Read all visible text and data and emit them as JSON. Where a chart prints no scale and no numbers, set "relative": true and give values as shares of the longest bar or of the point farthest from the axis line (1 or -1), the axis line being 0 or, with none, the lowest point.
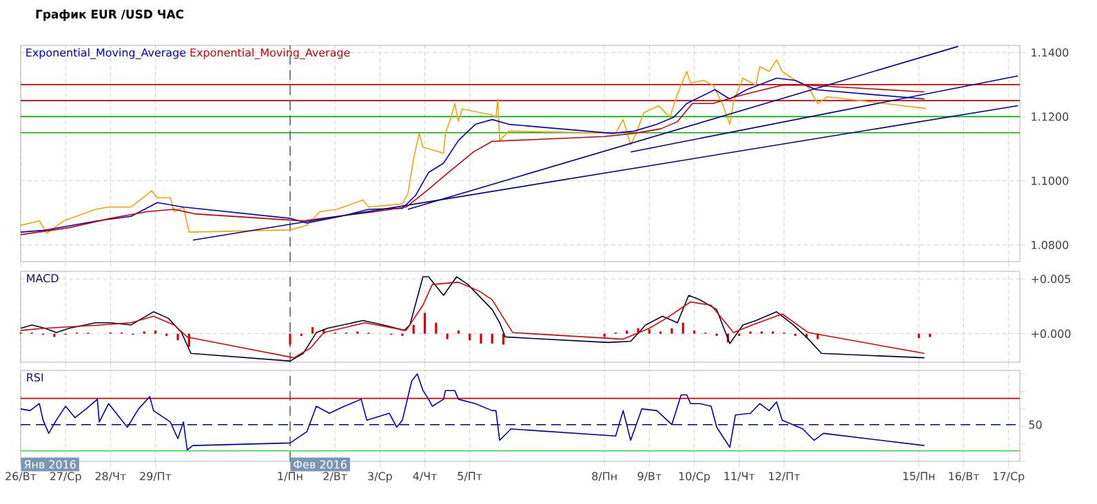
{
  "chart_data": [
    {
      "type": "line",
      "title": "График EUR /USD ЧАС",
      "legend": "top left",
      "grid": true,
      "tick_labels": "y",
      "xlim": [
        "2016-01-26T00:00",
        "2016-02-17T06:00"
      ],
      "ylim": [
        1.0748,
        1.1422
      ],
      "xticks": [
        {
          "value": "2016-01-26",
          "label": null
        },
        {
          "value": "2016-01-27",
          "label": null
        },
        {
          "value": "2016-01-28",
          "label": null
        },
        {
          "value": "2016-01-29",
          "label": null
        },
        {
          "value": "2016-02-01",
          "label": null
        },
        {
          "value": "2016-02-02",
          "label": null
        },
        {
          "value": "2016-02-03",
          "label": null
        },
        {
          "value": "2016-02-04",
          "label": null
        },
        {
          "value": "2016-02-05",
          "label": null
        },
        {
          "value": "2016-02-08",
          "label": null
        },
        {
          "value": "2016-02-09",
          "label": null
        },
        {
          "value": "2016-02-10",
          "label": null
        },
        {
          "value": "2016-02-11",
          "label": null
        },
        {
          "value": "2016-02-12",
          "label": null
        },
        {
          "value": "2016-02-15",
          "label": null
        },
        {
          "value": "2016-02-16",
          "label": null
        },
        {
          "value": "2016-02-17",
          "label": null
        }
      ],
      "yticks": [
        {
          "value": 1.08,
          "label": "1.0800"
        },
        {
          "value": 1.1,
          "label": "1.1000"
        },
        {
          "value": 1.12,
          "label": "1.1200"
        },
        {
          "value": 1.14,
          "label": "1.1400"
        }
      ],
      "ref_lines": [
        {
          "axis": "y",
          "value": 1.13,
          "color": "#cc0000"
        },
        {
          "axis": "y",
          "value": 1.125,
          "color": "#cc0000"
        },
        {
          "axis": "y",
          "value": 1.12,
          "color": "#00b000"
        },
        {
          "axis": "y",
          "value": 1.115,
          "color": "#00b000"
        },
        {
          "axis": "x",
          "value": "2016-02-01T00:00",
          "color": "#505050",
          "line_style": "dashed"
        }
      ],
      "series": [
        {
          "color": "#f5a300",
          "x": [
            "2016-01-26T00:00",
            "2016-01-26T10:00",
            "2016-01-26T14:00",
            "2016-01-26T23:00",
            "2016-01-27T16:00",
            "2016-01-27T23:00",
            "2016-01-28T11:00",
            "2016-01-28T22:00",
            "2016-01-29T01:00",
            "2016-01-29T08:00",
            "2016-01-29T10:00",
            "2016-01-29T15:00",
            "2016-01-29T18:00",
            "2016-02-01T00:00",
            "2016-02-01T09:00",
            "2016-02-01T16:00",
            "2016-02-02T01:00",
            "2016-02-02T15:00",
            "2016-02-02T18:00",
            "2016-02-03T12:00",
            "2016-02-03T15:00",
            "2016-02-03T18:00",
            "2016-02-03T21:00",
            "2016-02-03T23:00",
            "2016-02-04T10:00",
            "2016-02-04T11:00",
            "2016-02-04T14:00",
            "2016-02-04T16:00",
            "2016-02-04T18:00",
            "2016-02-04T20:00",
            "2016-02-05T12:00",
            "2016-02-05T14:00",
            "2016-02-05T15:00",
            "2016-02-05T16:00",
            "2016-02-05T21:00",
            "2016-02-08T06:00",
            "2016-02-08T10:00",
            "2016-02-08T14:00",
            "2016-02-08T17:00",
            "2016-02-08T21:00",
            "2016-02-09T05:00",
            "2016-02-09T11:00",
            "2016-02-09T15:00",
            "2016-02-09T20:00",
            "2016-02-09T22:00",
            "2016-02-10T05:00",
            "2016-02-10T10:00",
            "2016-02-10T15:00",
            "2016-02-10T19:00",
            "2016-02-10T21:00",
            "2016-02-11T02:00",
            "2016-02-11T09:00",
            "2016-02-11T11:00",
            "2016-02-11T16:00",
            "2016-02-11T20:00",
            "2016-02-11T23:00",
            "2016-02-12T06:00",
            "2016-02-12T13:00",
            "2016-02-12T18:00",
            "2016-02-12T23:00",
            "2016-02-15T02:00",
            "2016-02-15T04:00"
          ],
          "values": [
            1.0861,
            1.0875,
            1.0837,
            1.0875,
            1.0911,
            1.0918,
            1.0918,
            1.0969,
            1.0947,
            1.0947,
            1.0904,
            1.0918,
            1.084,
            1.0847,
            1.0861,
            1.0904,
            1.0911,
            1.094,
            1.0918,
            1.0928,
            1.0961,
            1.1069,
            1.1148,
            1.1105,
            1.1086,
            1.1148,
            1.1198,
            1.1241,
            1.1185,
            1.1224,
            1.1205,
            1.1198,
            1.1255,
            1.1126,
            1.1155,
            1.1148,
            1.1191,
            1.1112,
            1.1148,
            1.1212,
            1.1234,
            1.1198,
            1.127,
            1.1341,
            1.1305,
            1.1313,
            1.1298,
            1.1241,
            1.1176,
            1.1248,
            1.132,
            1.1298,
            1.1356,
            1.1341,
            1.1377,
            1.1341,
            1.1313,
            1.1291,
            1.1241,
            1.1262,
            1.1227,
            1.1224
          ]
        },
        {
          "name": "Exponential_Moving_Average",
          "color": "#0000cc",
          "x": [
            "2016-01-26T00:00",
            "2016-01-26T13:00",
            "2016-01-27T17:00",
            "2016-01-28T11:00",
            "2016-01-29T01:00",
            "2016-01-29T15:00",
            "2016-02-01T00:00",
            "2016-02-01T09:00",
            "2016-02-02T03:00",
            "2016-02-02T18:00",
            "2016-02-03T12:00",
            "2016-02-03T19:00",
            "2016-02-04T02:00",
            "2016-02-04T10:00",
            "2016-02-04T18:00",
            "2016-02-05T03:00",
            "2016-02-05T12:00",
            "2016-02-05T21:00",
            "2016-02-08T04:00",
            "2016-02-08T16:00",
            "2016-02-09T04:00",
            "2016-02-09T13:00",
            "2016-02-09T20:00",
            "2016-02-10T11:00",
            "2016-02-10T19:00",
            "2016-02-11T04:00",
            "2016-02-11T20:00",
            "2016-02-12T06:00",
            "2016-02-12T17:00",
            "2016-02-15T03:00"
          ],
          "values": [
            1.084,
            1.0846,
            1.0875,
            1.0889,
            1.0932,
            1.0918,
            1.0883,
            1.0868,
            1.0889,
            1.0911,
            1.0914,
            1.0954,
            1.1026,
            1.1055,
            1.1126,
            1.1176,
            1.1191,
            1.1176,
            1.1148,
            1.1155,
            1.1176,
            1.1198,
            1.1241,
            1.1284,
            1.1255,
            1.1284,
            1.132,
            1.1313,
            1.1284,
            1.1255
          ]
        },
        {
          "name": "Exponential_Moving_Average",
          "color": "#cc0000",
          "x": [
            "2016-01-26T00:00",
            "2016-01-27T02:00",
            "2016-01-28T00:00",
            "2016-01-28T20:00",
            "2016-01-29T10:00",
            "2016-01-29T21:00",
            "2016-02-01T07:00",
            "2016-02-02T01:00",
            "2016-02-02T22:00",
            "2016-02-03T14:00",
            "2016-02-04T01:00",
            "2016-02-04T11:00",
            "2016-02-05T02:00",
            "2016-02-05T12:00",
            "2016-02-08T00:00",
            "2016-02-08T16:00",
            "2016-02-09T06:00",
            "2016-02-09T15:00",
            "2016-02-09T23:00",
            "2016-02-10T10:00",
            "2016-02-10T22:00",
            "2016-02-11T13:00",
            "2016-02-11T23:00",
            "2016-02-12T13:00",
            "2016-02-15T03:00"
          ],
          "values": [
            1.0832,
            1.0854,
            1.0883,
            1.0904,
            1.0911,
            1.0897,
            1.0875,
            1.0889,
            1.0904,
            1.0918,
            1.0969,
            1.1018,
            1.109,
            1.1123,
            1.1138,
            1.1148,
            1.1162,
            1.1184,
            1.1241,
            1.1241,
            1.1262,
            1.1284,
            1.1298,
            1.1298,
            1.1277
          ]
        },
        {
          "color": "#00008b",
          "x": [
            "2016-01-29T20:00",
            "2016-02-17T05:00"
          ],
          "values": [
            1.0815,
            1.1234
          ]
        },
        {
          "color": "#00008b",
          "x": [
            "2016-02-03T15:00",
            "2016-02-15T21:00"
          ],
          "values": [
            1.0911,
            1.1419
          ]
        },
        {
          "color": "#00008b",
          "x": [
            "2016-02-08T14:00",
            "2016-02-17T05:00"
          ],
          "values": [
            1.109,
            1.1327
          ]
        }
      ]
    },
    {
      "type": "line",
      "title": "MACD",
      "grid": true,
      "tick_labels": "y",
      "xlim": [
        "2016-01-26T00:00",
        "2016-02-17T06:00"
      ],
      "ylim": [
        -0.0026,
        0.0057
      ],
      "xticks": [
        {
          "value": "2016-01-26",
          "label": null
        },
        {
          "value": "2016-01-27",
          "label": null
        },
        {
          "value": "2016-01-28",
          "label": null
        },
        {
          "value": "2016-01-29",
          "label": null
        },
        {
          "value": "2016-02-01",
          "label": null
        },
        {
          "value": "2016-02-02",
          "label": null
        },
        {
          "value": "2016-02-03",
          "label": null
        },
        {
          "value": "2016-02-04",
          "label": null
        },
        {
          "value": "2016-02-05",
          "label": null
        },
        {
          "value": "2016-02-08",
          "label": null
        },
        {
          "value": "2016-02-09",
          "label": null
        },
        {
          "value": "2016-02-10",
          "label": null
        },
        {
          "value": "2016-02-11",
          "label": null
        },
        {
          "value": "2016-02-12",
          "label": null
        },
        {
          "value": "2016-02-15",
          "label": null
        },
        {
          "value": "2016-02-16",
          "label": null
        },
        {
          "value": "2016-02-17",
          "label": null
        }
      ],
      "yticks": [
        {
          "value": 0,
          "label": "+0.000"
        },
        {
          "value": 0.005,
          "label": "+0.005"
        }
      ],
      "ref_lines": [
        {
          "axis": "x",
          "value": "2016-02-01T00:00",
          "color": "#505050",
          "line_style": "dashed"
        }
      ],
      "series": [
        {
          "type": "bar",
          "color": "#dd0000",
          "x": [
            "2016-01-26T00:00",
            "2016-01-26T06:00",
            "2016-01-26T12:00",
            "2016-01-26T18:00",
            "2016-01-27T00:00",
            "2016-01-27T06:00",
            "2016-01-27T12:00",
            "2016-01-27T18:00",
            "2016-01-28T00:00",
            "2016-01-28T06:00",
            "2016-01-28T12:00",
            "2016-01-28T18:00",
            "2016-01-29T00:00",
            "2016-01-29T06:00",
            "2016-01-29T12:00",
            "2016-01-29T18:00",
            "2016-02-01T00:00",
            "2016-02-01T06:00",
            "2016-02-01T12:00",
            "2016-02-01T18:00",
            "2016-02-02T00:00",
            "2016-02-02T06:00",
            "2016-02-02T12:00",
            "2016-02-02T18:00",
            "2016-02-03T00:00",
            "2016-02-03T06:00",
            "2016-02-03T12:00",
            "2016-02-03T18:00",
            "2016-02-04T00:00",
            "2016-02-04T06:00",
            "2016-02-04T12:00",
            "2016-02-04T18:00",
            "2016-02-05T00:00",
            "2016-02-05T06:00",
            "2016-02-05T12:00",
            "2016-02-05T18:00",
            "2016-02-08T00:00",
            "2016-02-08T06:00",
            "2016-02-08T12:00",
            "2016-02-08T18:00",
            "2016-02-09T00:00",
            "2016-02-09T06:00",
            "2016-02-09T12:00",
            "2016-02-09T18:00",
            "2016-02-10T00:00",
            "2016-02-10T06:00",
            "2016-02-10T12:00",
            "2016-02-10T18:00",
            "2016-02-11T00:00",
            "2016-02-11T06:00",
            "2016-02-11T12:00",
            "2016-02-11T18:00",
            "2016-02-12T00:00",
            "2016-02-12T06:00",
            "2016-02-12T12:00",
            "2016-02-12T18:00",
            "2016-02-15T00:00",
            "2016-02-15T06:00"
          ],
          "values": [
            0.0001,
            0.0001,
            -0.0001,
            -0.0003,
            -0.0001,
            0.0001,
            0.0001,
            0,
            0.0001,
            0.0001,
            -0.0001,
            0.0002,
            0.0003,
            -0.0002,
            -0.0006,
            -0.0012,
            -0.001,
            -0.0002,
            0.0006,
            0.0004,
            0.0001,
            0.0001,
            0.0002,
            0.0001,
            0,
            -0.0001,
            -0.0002,
            0.0008,
            0.0019,
            0.001,
            -0.0005,
            0.0003,
            -0.0006,
            -0.0009,
            -0.0009,
            -0.001,
            -0.0003,
            0.0001,
            0.0003,
            0.0005,
            0.0004,
            0.0002,
            0.0005,
            0.001,
            0.0003,
            0.0001,
            -0.0002,
            -0.0008,
            -0.0002,
            0.0002,
            0.0002,
            0.0002,
            0.0001,
            -0.0002,
            -0.0004,
            -0.0005,
            -0.0004,
            -0.0003
          ]
        },
        {
          "color": "#000033",
          "x": [
            "2016-01-26T00:00",
            "2016-01-26T06:00",
            "2016-01-26T13:00",
            "2016-01-26T19:00",
            "2016-01-27T02:00",
            "2016-01-27T16:00",
            "2016-01-28T00:00",
            "2016-01-28T11:00",
            "2016-01-28T23:00",
            "2016-01-29T07:00",
            "2016-01-29T14:00",
            "2016-01-29T19:00",
            "2016-02-01T00:00",
            "2016-02-01T07:00",
            "2016-02-01T14:00",
            "2016-02-01T20:00",
            "2016-02-02T15:00",
            "2016-02-03T02:00",
            "2016-02-03T13:00",
            "2016-02-03T16:00",
            "2016-02-03T23:00",
            "2016-02-04T02:00",
            "2016-02-04T10:00",
            "2016-02-04T17:00",
            "2016-02-04T23:00",
            "2016-02-05T12:00",
            "2016-02-05T16:00",
            "2016-02-05T19:00",
            "2016-02-08T02:00",
            "2016-02-08T14:00",
            "2016-02-08T22:00",
            "2016-02-09T07:00",
            "2016-02-09T15:00",
            "2016-02-09T21:00",
            "2016-02-10T03:00",
            "2016-02-10T12:00",
            "2016-02-10T19:00",
            "2016-02-11T02:00",
            "2016-02-11T09:00",
            "2016-02-11T20:00",
            "2016-02-12T05:00",
            "2016-02-12T13:00",
            "2016-02-12T20:00",
            "2016-02-15T03:00"
          ],
          "values": [
            0.0005,
            0.0008,
            0.0005,
            0.0001,
            0.0005,
            0.001,
            0.001,
            0.0008,
            0.002,
            0.0014,
            0.0001,
            -0.0018,
            -0.0025,
            -0.0018,
            0.0001,
            0.0005,
            0.0012,
            0.0008,
            0.0003,
            0.0008,
            0.0052,
            0.0052,
            0.0035,
            0.0052,
            0.0045,
            0.0022,
            0.001,
            -0.0003,
            -0.0008,
            -0.0007,
            0.0008,
            0.0016,
            0.001,
            0.0035,
            0.0031,
            0.0022,
            -0.0009,
            0.0008,
            0.0012,
            0.002,
            0.0008,
            -0.0005,
            -0.0018,
            -0.0022
          ]
        },
        {
          "color": "#dd0000",
          "x": [
            "2016-01-26T00:00",
            "2016-01-26T13:00",
            "2016-01-27T19:00",
            "2016-01-28T11:00",
            "2016-01-28T23:00",
            "2016-01-29T10:00",
            "2016-01-29T17:00",
            "2016-02-01T02:00",
            "2016-02-01T11:00",
            "2016-02-01T18:00",
            "2016-02-02T16:00",
            "2016-02-03T14:00",
            "2016-02-03T23:00",
            "2016-02-04T04:00",
            "2016-02-04T18:00",
            "2016-02-05T05:00",
            "2016-02-05T12:00",
            "2016-02-05T23:00",
            "2016-02-08T10:00",
            "2016-02-09T00:00",
            "2016-02-09T09:00",
            "2016-02-09T22:00",
            "2016-02-10T09:00",
            "2016-02-10T21:00",
            "2016-02-11T07:00",
            "2016-02-11T23:00",
            "2016-02-12T13:00",
            "2016-02-15T03:00"
          ],
          "values": [
            0.0003,
            0.0005,
            0.0008,
            0.001,
            0.0016,
            0.0008,
            -0.0003,
            -0.0022,
            -0.0013,
            0.0001,
            0.001,
            0.0003,
            0.0026,
            0.0045,
            0.0047,
            0.0039,
            0.0031,
            0.0001,
            -0.0005,
            0.0005,
            0.0014,
            0.0029,
            0.0026,
            0.0001,
            0.0008,
            0.0018,
            0.0001,
            -0.0018
          ]
        }
      ]
    },
    {
      "type": "line",
      "title": "RSI",
      "grid": "x",
      "relative": true,
      "xlim": [
        "2016-01-26T00:00",
        "2016-02-17T06:00"
      ],
      "xticks": [
        {
          "value": "2016-01-26",
          "label": "26/Вт"
        },
        {
          "value": "2016-01-27",
          "label": "27/Ср"
        },
        {
          "value": "2016-01-28",
          "label": "28/Чт"
        },
        {
          "value": "2016-01-29",
          "label": "29/Пт"
        },
        {
          "value": "2016-02-01",
          "label": "1/Пн"
        },
        {
          "value": "2016-02-02",
          "label": "2/Вт"
        },
        {
          "value": "2016-02-03",
          "label": "3/Ср"
        },
        {
          "value": "2016-02-04",
          "label": "4/Чт"
        },
        {
          "value": "2016-02-05",
          "label": "5/Пт"
        },
        {
          "value": "2016-02-08",
          "label": "8/Пн"
        },
        {
          "value": "2016-02-09",
          "label": "9/Вт"
        },
        {
          "value": "2016-02-10",
          "label": "10/Ср"
        },
        {
          "value": "2016-02-11",
          "label": "11/Чт"
        },
        {
          "value": "2016-02-12",
          "label": "12/Пт"
        },
        {
          "value": "2016-02-15",
          "label": "15/Пн"
        },
        {
          "value": "2016-02-16",
          "label": "16/Вт"
        },
        {
          "value": "2016-02-17",
          "label": "17/Ср"
        }
      ],
      "ref_lines": [
        {
          "axis": "y",
          "value": 0.72,
          "color": "#cc0000"
        },
        {
          "axis": "y",
          "value": 0.12,
          "color": "#33dd33"
        },
        {
          "axis": "y",
          "value": 0.42,
          "color": "#000099",
          "line_style": "dashed"
        },
        {
          "axis": "x",
          "value": "2016-02-01T00:00",
          "color": "#505050",
          "line_style": "dashed"
        }
      ],
      "annotations": [
        "Янв 2016",
        {
          "text": "Фев 2016",
          "x": "2016-02-01T00:00"
        },
        "50"
      ],
      "series": [
        {
          "color": "#0000aa",
          "x": [
            "2016-01-26T00:00",
            "2016-01-26T05:00",
            "2016-01-26T10:00",
            "2016-01-26T12:00",
            "2016-01-26T15:00",
            "2016-01-26T19:00",
            "2016-01-27T00:00",
            "2016-01-27T05:00",
            "2016-01-27T11:00",
            "2016-01-27T17:00",
            "2016-01-27T18:00",
            "2016-01-27T23:00",
            "2016-01-28T09:00",
            "2016-01-28T15:00",
            "2016-01-28T21:00",
            "2016-01-28T23:00",
            "2016-01-29T08:00",
            "2016-01-29T12:00",
            "2016-01-29T15:00",
            "2016-01-29T17:00",
            "2016-01-29T20:00",
            "2016-02-01T00:00",
            "2016-02-01T09:00",
            "2016-02-01T14:00",
            "2016-02-01T21:00",
            "2016-02-02T05:00",
            "2016-02-02T14:00",
            "2016-02-02T17:00",
            "2016-02-03T05:00",
            "2016-02-03T09:00",
            "2016-02-03T12:00",
            "2016-02-03T17:00",
            "2016-02-03T20:00",
            "2016-02-03T23:00",
            "2016-02-04T02:00",
            "2016-02-04T04:00",
            "2016-02-04T10:00",
            "2016-02-04T11:00",
            "2016-02-04T16:00",
            "2016-02-04T18:00",
            "2016-02-05T03:00",
            "2016-02-05T12:00",
            "2016-02-05T14:00",
            "2016-02-05T16:00",
            "2016-02-05T22:00",
            "2016-02-08T06:00",
            "2016-02-08T10:00",
            "2016-02-08T14:00",
            "2016-02-08T20:00",
            "2016-02-09T04:00",
            "2016-02-09T12:00",
            "2016-02-09T17:00",
            "2016-02-09T20:00",
            "2016-02-09T22:00",
            "2016-02-10T03:00",
            "2016-02-10T09:00",
            "2016-02-10T12:00",
            "2016-02-10T19:00",
            "2016-02-10T22:00",
            "2016-02-11T06:00",
            "2016-02-11T11:00",
            "2016-02-11T16:00",
            "2016-02-11T20:00",
            "2016-02-11T23:00",
            "2016-02-12T10:00",
            "2016-02-12T16:00",
            "2016-02-12T21:00",
            "2016-02-15T03:00"
          ],
          "values": [
            0.6,
            0.58,
            0.66,
            0.47,
            0.32,
            0.47,
            0.63,
            0.5,
            0.6,
            0.71,
            0.45,
            0.66,
            0.39,
            0.6,
            0.74,
            0.58,
            0.45,
            0.26,
            0.45,
            0.13,
            0.18,
            0.21,
            0.34,
            0.63,
            0.55,
            0.63,
            0.71,
            0.47,
            0.55,
            0.39,
            0.47,
            0.92,
            1,
            0.81,
            0.71,
            0.63,
            0.71,
            0.81,
            0.81,
            0.71,
            0.66,
            0.58,
            0.58,
            0.24,
            0.37,
            0.29,
            0.58,
            0.24,
            0.6,
            0.58,
            0.42,
            0.76,
            0.76,
            0.66,
            0.66,
            0.63,
            0.39,
            0.16,
            0.53,
            0.55,
            0.66,
            0.58,
            0.68,
            0.47,
            0.37,
            0.24,
            0.32,
            0.18
          ]
        }
      ]
    }
  ]
}
